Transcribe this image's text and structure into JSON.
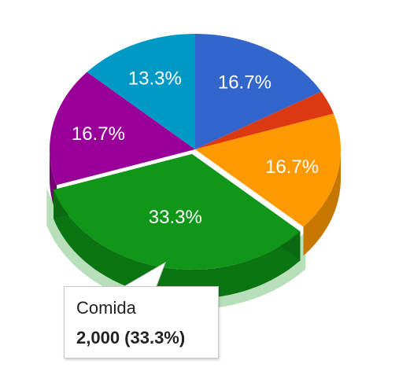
{
  "chart_data": {
    "type": "pie",
    "three_d": true,
    "slices": [
      {
        "name": "",
        "value": 1000,
        "label": "16.7%",
        "color": "#3366cc"
      },
      {
        "name": "",
        "value": 200,
        "label": "",
        "color": "#dc3912"
      },
      {
        "name": "",
        "value": 1000,
        "label": "16.7%",
        "color": "#ff9900"
      },
      {
        "name": "Comida",
        "value": 2000,
        "label": "33.3%",
        "color": "#109618"
      },
      {
        "name": "",
        "value": 1000,
        "label": "16.7%",
        "color": "#990099"
      },
      {
        "name": "",
        "value": 800,
        "label": "13.3%",
        "color": "#0099c6"
      }
    ],
    "highlighted_slice": 3,
    "tooltip": {
      "name": "Comida",
      "value_text": "2,000 (33.3%)"
    },
    "legend": "none"
  }
}
